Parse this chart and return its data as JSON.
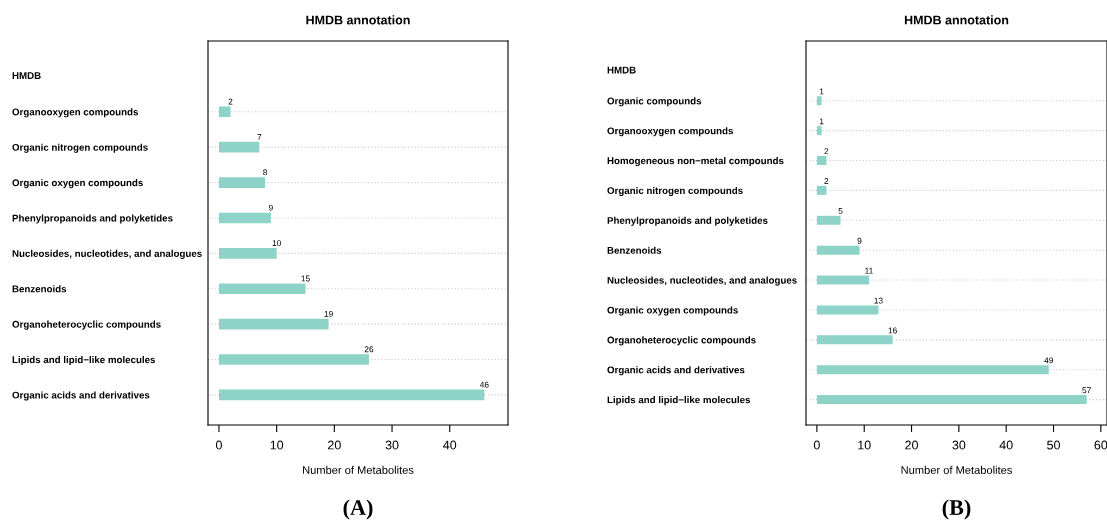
{
  "chart_data": [
    {
      "type": "bar",
      "orientation": "horizontal",
      "title": "HMDB annotation",
      "xlabel": "Number of Metabolites",
      "ylabel": "HMDB",
      "categories": [
        "Organooxygen compounds",
        "Organic nitrogen compounds",
        "Organic oxygen compounds",
        "Phenylpropanoids and polyketides",
        "Nucleosides, nucleotides, and analogues",
        "Benzenoids",
        "Organoheterocyclic compounds",
        "Lipids and lipid−like molecules",
        "Organic acids and derivatives"
      ],
      "values": [
        2,
        7,
        8,
        9,
        10,
        15,
        19,
        26,
        46
      ],
      "color": "#8dd3c7",
      "data_labels": true,
      "xlim": [
        -1.9,
        50.1
      ],
      "xticks": [
        0,
        10,
        20,
        30,
        40
      ],
      "grid": "y",
      "annotations": [
        "(A)"
      ]
    },
    {
      "type": "bar",
      "orientation": "horizontal",
      "title": "HMDB annotation",
      "xlabel": "Number of Metabolites",
      "ylabel": "HMDB",
      "categories": [
        "Organic compounds",
        "Organooxygen compounds",
        "Homogeneous non−metal compounds",
        "Organic nitrogen compounds",
        "Phenylpropanoids and polyketides",
        "Benzenoids",
        "Nucleosides, nucleotides, and analogues",
        "Organic oxygen compounds",
        "Organoheterocyclic compounds",
        "Organic acids and derivatives",
        "Lipids and lipid−like molecules"
      ],
      "values": [
        1,
        1,
        2,
        2,
        5,
        9,
        11,
        13,
        16,
        49,
        57
      ],
      "color": "#8dd3c7",
      "data_labels": true,
      "xlim": [
        -2.3,
        61.3
      ],
      "xticks": [
        0,
        10,
        20,
        30,
        40,
        50,
        60
      ],
      "grid": "y",
      "annotations": [
        "(B)"
      ]
    }
  ]
}
